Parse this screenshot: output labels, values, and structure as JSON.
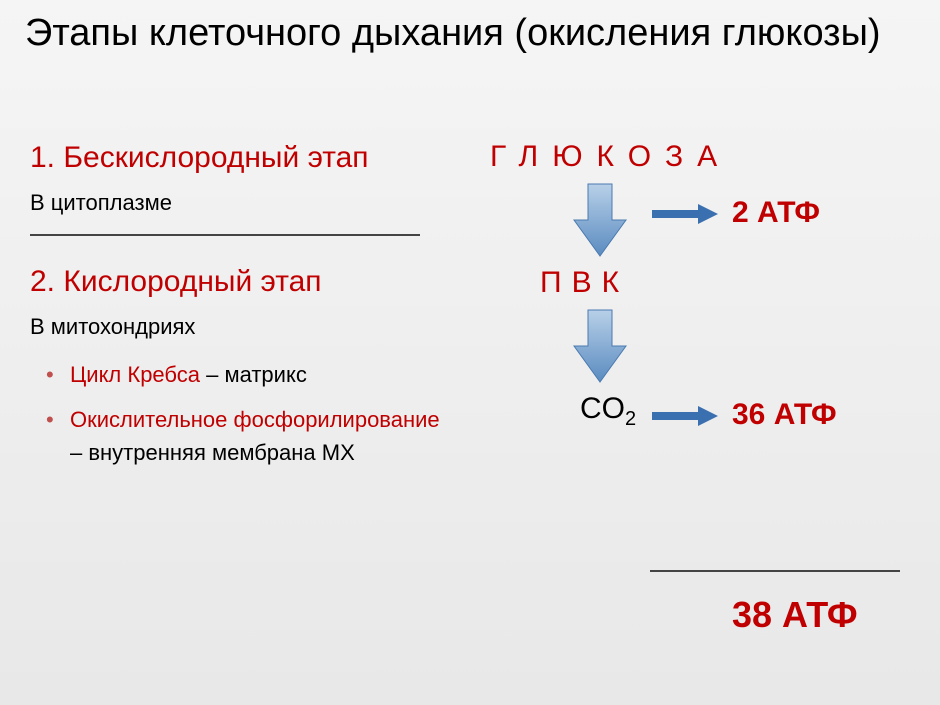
{
  "title": "Этапы клеточного дыхания (окисления глюкозы)",
  "colors": {
    "red": "#c00000",
    "blue_arrow_light": "#b8d0e8",
    "blue_arrow_dark": "#5a8bc0",
    "blue_small_arrow": "#3a6fb0",
    "bullet_brown": "#c0504d",
    "text": "#000000"
  },
  "stages": [
    {
      "heading": "1. Бескислородный этап",
      "sub": "В цитоплазме"
    },
    {
      "heading": "2. Кислородный этап",
      "sub": "В митохондриях",
      "bullets": [
        {
          "bold": "Цикл Кребса",
          "rest": " – матрикс"
        },
        {
          "bold": "Окислительное фосфорилирование",
          "rest": " – внутренняя мембрана МХ"
        }
      ]
    }
  ],
  "flow": {
    "top": "ГЛЮКОЗА",
    "mid": "ПВК",
    "co2": "CO",
    "co2_sub": "2",
    "atp1": "2 АТФ",
    "atp2": "36 АТФ",
    "total": "38 АТФ"
  }
}
